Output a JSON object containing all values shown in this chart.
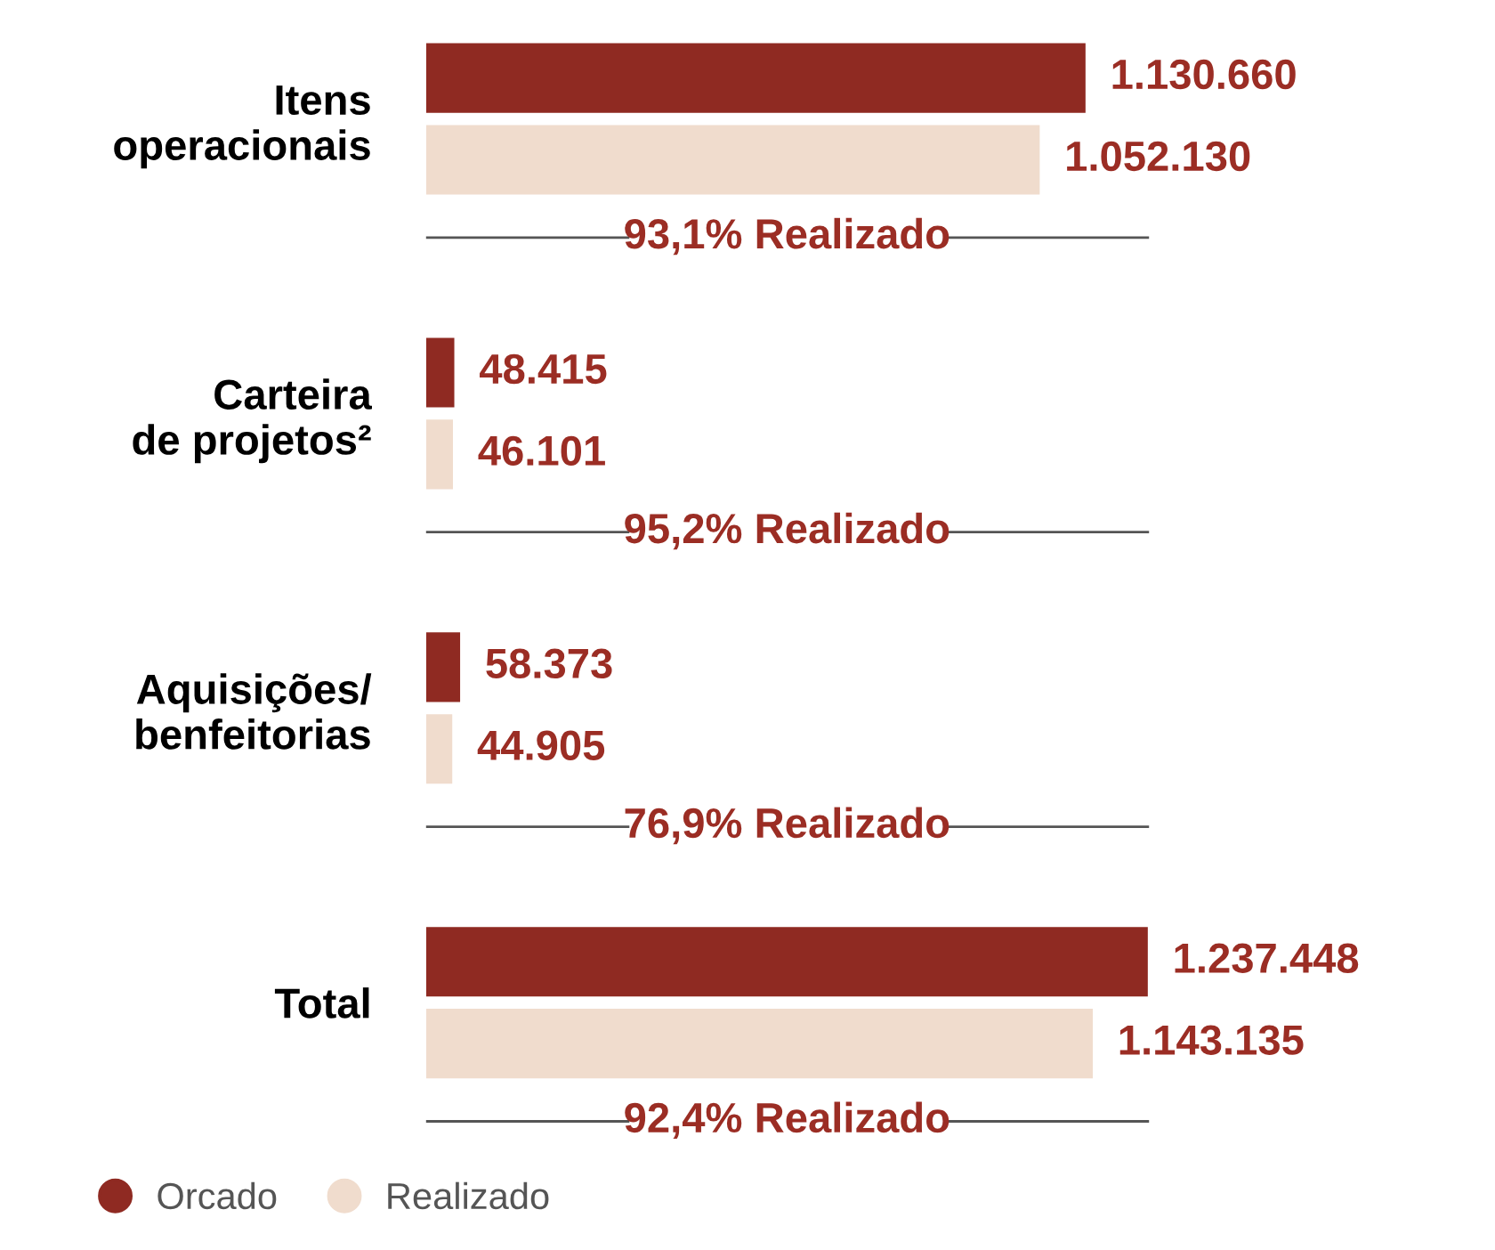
{
  "chart_data": {
    "type": "bar",
    "orientation": "horizontal",
    "categories": [
      "Itens\noperacionais",
      "Carteira\nde projetos²",
      "Aquisições/\nbenfeitorias",
      "Total"
    ],
    "series": [
      {
        "name": "Orcado",
        "color": "#8f2a22",
        "values": [
          1130660,
          48415,
          58373,
          1237448
        ],
        "value_labels": [
          "1.130.660",
          "48.415",
          "58.373",
          "1.237.448"
        ]
      },
      {
        "name": "Realizado",
        "color": "#f0dccd",
        "values": [
          1052130,
          46101,
          44905,
          1143135
        ],
        "value_labels": [
          "1.052.130",
          "46.101",
          "44.905",
          "1.143.135"
        ]
      }
    ],
    "annotations": [
      "93,1% Realizado",
      "95,2% Realizado",
      "76,9% Realizado",
      "92,4% Realizado"
    ],
    "legend": "bottom left",
    "grid": false,
    "tick_labels": "y"
  }
}
